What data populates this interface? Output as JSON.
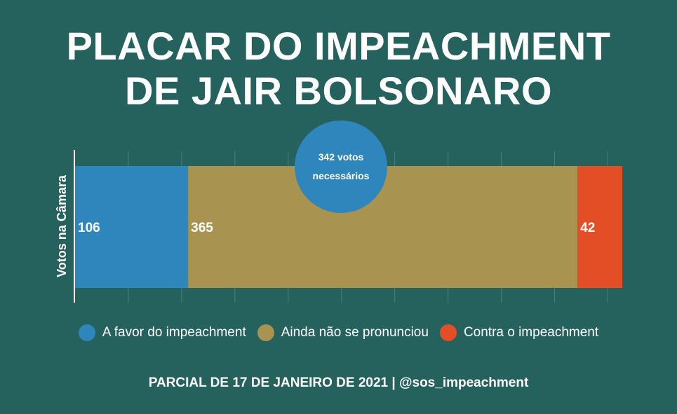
{
  "title": {
    "line1": "PLACAR DO IMPEACHMENT",
    "line2": "DE JAIR BOLSONARO"
  },
  "chart_data": {
    "type": "bar",
    "orientation": "horizontal-stacked",
    "ylabel": "Votos na Câmara",
    "xlim": [
      0,
      513
    ],
    "grid": true,
    "series": [
      {
        "name": "A favor do impeachment",
        "value": 106,
        "label": "106",
        "color": "#2E86BC"
      },
      {
        "name": "Ainda não se pronunciou",
        "value": 365,
        "label": "365",
        "color": "#A89450"
      },
      {
        "name": "Contra o impeachment",
        "value": 42,
        "label": "42",
        "color": "#E44E27"
      }
    ],
    "threshold": {
      "value": 342,
      "label_line1": "342 votos",
      "label_line2": "necessários",
      "color": "#2E86BC"
    },
    "legend_placement": "bottom"
  },
  "footer": "PARCIAL DE 17 DE JANEIRO DE 2021 | @sos_impeachment"
}
